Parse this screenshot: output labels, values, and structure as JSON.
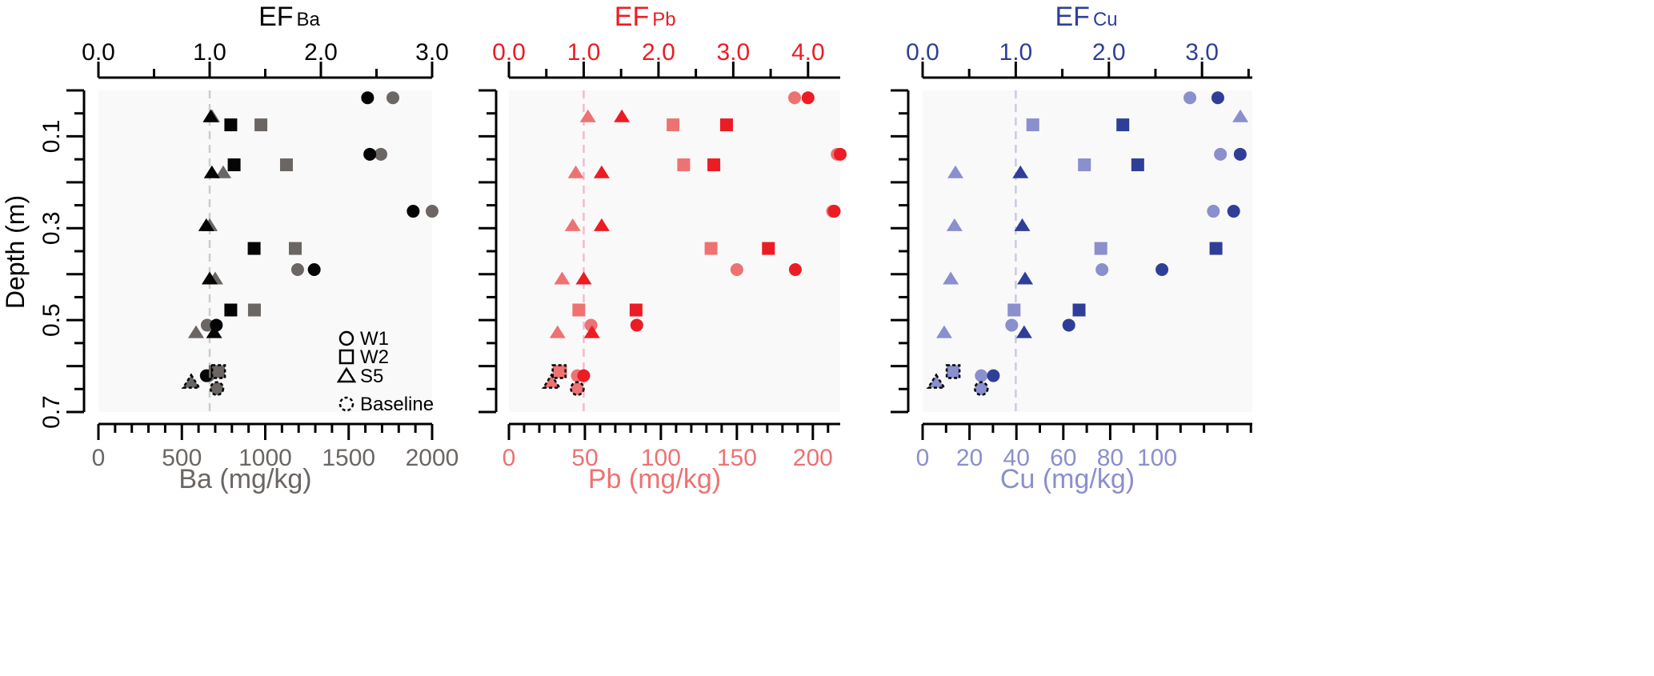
{
  "chart_data": {
    "type": "scatter",
    "depth_axis": {
      "label": "Depth (m)",
      "range": [
        0,
        0.7
      ],
      "inverted": true,
      "tick_labels": [
        "0.1",
        "0.3",
        "0.5",
        "0.7"
      ],
      "major_ticks": [
        0,
        0.1,
        0.2,
        0.3,
        0.4,
        0.5,
        0.6,
        0.7
      ],
      "minor_ticks": [
        0.05,
        0.15,
        0.25,
        0.35,
        0.45,
        0.55,
        0.65
      ]
    },
    "legend": {
      "placement": "bottom-right of first panel",
      "entries": [
        {
          "label": "W1",
          "marker": "circle"
        },
        {
          "label": "W2",
          "marker": "square"
        },
        {
          "label": "S5",
          "marker": "triangle"
        },
        {
          "label": "Baseline",
          "marker": "dashed-circle"
        }
      ]
    },
    "panels": [
      {
        "element": "Ba",
        "ef_title": "EF",
        "ef_sub": "Ba",
        "conc_label": "Ba (mg/kg)",
        "conc_color": "#6b6663",
        "ef_color": "#050505",
        "ref_line_color": "#cccccc",
        "conc_range": [
          0,
          2000
        ],
        "conc_ticks": [
          0,
          500,
          1000,
          1500,
          2000
        ],
        "conc_minor_step": 100,
        "ef_range": [
          0,
          3.0
        ],
        "ef_ticks": [
          "0.0",
          "1.0",
          "2.0",
          "3.0"
        ],
        "ef_minor_step": 0.5,
        "ef_reference": 1.0,
        "series": [
          {
            "site": "W1",
            "marker": "circle",
            "depth": [
              0.016,
              0.139,
              0.263,
              0.39,
              0.511,
              0.621
            ],
            "conc": [
              1765,
              1693,
              2000,
              1194,
              652,
              660
            ],
            "ef": [
              2.42,
              2.44,
              2.83,
              1.94,
              1.06,
              0.97
            ]
          },
          {
            "site": "W2",
            "marker": "square",
            "depth": [
              0.075,
              0.162,
              0.344,
              0.478,
              0.612
            ],
            "conc": [
              974,
              1127,
              1180,
              935,
              700
            ],
            "ef": [
              1.19,
              1.22,
              1.4,
              1.19,
              1.07
            ]
          },
          {
            "site": "S5",
            "marker": "triangle",
            "depth": [
              0.057,
              0.179,
              0.294,
              0.41,
              0.527,
              0.635
            ],
            "conc": [
              681,
              748,
              667,
              700,
              585,
              556
            ],
            "ef": [
              1.01,
              1.02,
              0.97,
              1.0,
              1.04,
              null
            ]
          }
        ],
        "baseline": [
          {
            "site": "W1",
            "marker": "circle",
            "depth": 0.649,
            "conc": 710
          },
          {
            "site": "W2",
            "marker": "square",
            "depth": 0.612,
            "conc": 720
          },
          {
            "site": "S5",
            "marker": "triangle",
            "depth": 0.635,
            "conc": 556
          }
        ]
      },
      {
        "element": "Pb",
        "ef_title": "EF",
        "ef_sub": "Pb",
        "conc_label": "Pb (mg/kg)",
        "conc_color": "#ee7272",
        "ef_color": "#ec1c24",
        "ref_line_color": "#f5b9cf",
        "conc_range": [
          0,
          218
        ],
        "conc_ticks": [
          0,
          50,
          100,
          150,
          200
        ],
        "conc_minor_step": 10,
        "ef_range": [
          0,
          4.43
        ],
        "ef_ticks": [
          "0.0",
          "1.0",
          "2.0",
          "3.0",
          "4.0"
        ],
        "ef_minor_step": 0.5,
        "ef_reference": 1.0,
        "series": [
          {
            "site": "W1",
            "marker": "circle",
            "depth": [
              0.016,
              0.139,
              0.263,
              0.39,
              0.511,
              0.621
            ],
            "conc": [
              188,
              216,
              213,
              150,
              54,
              45
            ],
            "ef": [
              4.0,
              4.43,
              4.35,
              3.83,
              1.71,
              1.0
            ]
          },
          {
            "site": "W2",
            "marker": "square",
            "depth": [
              0.075,
              0.162,
              0.344,
              0.478,
              0.612
            ],
            "conc": [
              108,
              115,
              133,
              46,
              34
            ],
            "ef": [
              2.91,
              2.74,
              3.47,
              1.7,
              null
            ]
          },
          {
            "site": "S5",
            "marker": "triangle",
            "depth": [
              0.057,
              0.179,
              0.294,
              0.41,
              0.527,
              0.635
            ],
            "conc": [
              52,
              44,
              42,
              35,
              32,
              28
            ],
            "ef": [
              1.51,
              1.24,
              1.24,
              1.0,
              1.11,
              null
            ]
          }
        ],
        "baseline": [
          {
            "site": "W1",
            "marker": "circle",
            "depth": 0.649,
            "conc": 45
          },
          {
            "site": "W2",
            "marker": "square",
            "depth": 0.612,
            "conc": 33
          },
          {
            "site": "S5",
            "marker": "triangle",
            "depth": 0.635,
            "conc": 28
          }
        ]
      },
      {
        "element": "Cu",
        "ef_title": "EF",
        "ef_sub": "Cu",
        "conc_label": "Cu (mg/kg)",
        "conc_color": "#8a8fcd",
        "ef_color": "#2f3f98",
        "ref_line_color": "#c9c9e6",
        "conc_range": [
          0,
          140.6
        ],
        "conc_ticks": [
          0,
          20,
          40,
          60,
          80,
          100
        ],
        "conc_minor_step": 10,
        "ef_range": [
          0,
          3.54
        ],
        "ef_ticks": [
          "0.0",
          "1.0",
          "2.0",
          "3.0"
        ],
        "ef_minor_step": 0.5,
        "ef_reference": 1.0,
        "series": [
          {
            "site": "W1",
            "marker": "circle",
            "depth": [
              0.016,
              0.139,
              0.263,
              0.39,
              0.511,
              0.621
            ],
            "conc": [
              114,
              127,
              124,
              76.5,
              38,
              25
            ],
            "ef": [
              3.17,
              3.41,
              3.34,
              2.57,
              1.57,
              0.76
            ]
          },
          {
            "site": "W2",
            "marker": "square",
            "depth": [
              0.075,
              0.162,
              0.344,
              0.478,
              0.612
            ],
            "conc": [
              47,
              69,
              76,
              39,
              13
            ],
            "ef": [
              2.15,
              2.31,
              3.15,
              1.68,
              null
            ]
          },
          {
            "site": "S5",
            "marker": "triangle",
            "depth": [
              0.057,
              0.179,
              0.294,
              0.41,
              0.527,
              0.635
            ],
            "conc": [
              135.5,
              14,
              13.6,
              12,
              9.2,
              5.8
            ],
            "ef": [
              null,
              1.05,
              1.07,
              1.1,
              1.09,
              null
            ]
          }
        ],
        "baseline": [
          {
            "site": "W1",
            "marker": "circle",
            "depth": 0.649,
            "conc": 25
          },
          {
            "site": "W2",
            "marker": "square",
            "depth": 0.612,
            "conc": 13
          },
          {
            "site": "S5",
            "marker": "triangle",
            "depth": 0.635,
            "conc": 5.8
          }
        ]
      }
    ]
  }
}
